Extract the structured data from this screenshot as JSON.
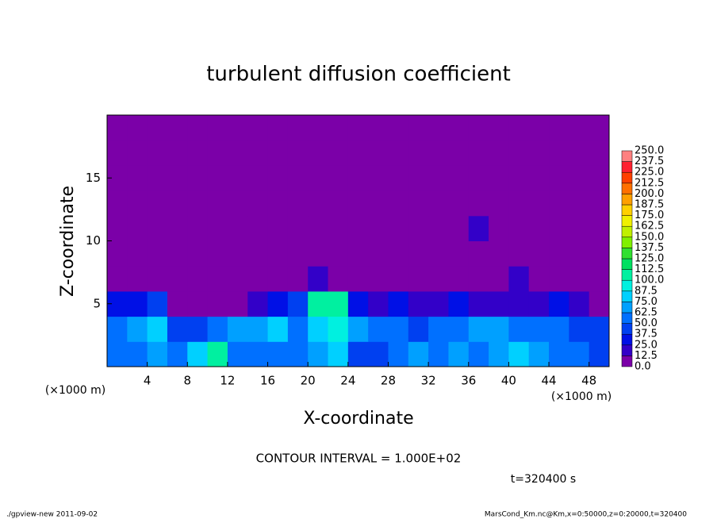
{
  "chart_data": {
    "type": "heatmap",
    "title": "turbulent diffusion coefficient",
    "x_label": "X-coordinate",
    "y_label": "Z-coordinate",
    "x_unit": "(×1000 m)",
    "y_unit": "(×1000 m)",
    "contour_note": "CONTOUR INTERVAL = 1.000E+02",
    "time_note": "t=320400 s",
    "footer_left": "./gpview-new  2011-09-02",
    "footer_right": "MarsCond_Km.nc@Km,x=0:50000,z=0:20000,t=320400",
    "xlim": [
      0,
      50
    ],
    "ylim": [
      0,
      20
    ],
    "xticks": [
      4,
      8,
      12,
      16,
      20,
      24,
      28,
      32,
      36,
      40,
      44,
      48
    ],
    "yticks": [
      5,
      10,
      15
    ],
    "xbins": [
      0,
      2,
      4,
      6,
      8,
      10,
      12,
      14,
      16,
      18,
      20,
      22,
      24,
      26,
      28,
      30,
      32,
      34,
      36,
      38,
      40,
      42,
      44,
      46,
      48,
      50
    ],
    "ybins": [
      0,
      2,
      4,
      6,
      8,
      10,
      12,
      14,
      16,
      18,
      20
    ],
    "values": [
      [
        50,
        60,
        70,
        55,
        80,
        100,
        60,
        50,
        55,
        60,
        70,
        75,
        40,
        45,
        60,
        70,
        55,
        65,
        60,
        70,
        75,
        65,
        55,
        50,
        45
      ],
      [
        55,
        70,
        80,
        45,
        40,
        50,
        65,
        70,
        75,
        60,
        85,
        90,
        65,
        60,
        50,
        45,
        55,
        60,
        70,
        65,
        60,
        55,
        50,
        45,
        40
      ],
      [
        30,
        35,
        40,
        5,
        5,
        5,
        10,
        20,
        30,
        40,
        100,
        110,
        30,
        20,
        25,
        15,
        20,
        25,
        15,
        20,
        15,
        20,
        25,
        20,
        10
      ],
      [
        3,
        3,
        3,
        3,
        3,
        3,
        3,
        3,
        3,
        10,
        20,
        5,
        3,
        3,
        3,
        3,
        5,
        8,
        10,
        12,
        15,
        8,
        3,
        3,
        3
      ],
      [
        3,
        3,
        3,
        3,
        3,
        12,
        3,
        3,
        3,
        3,
        3,
        3,
        3,
        3,
        3,
        3,
        3,
        3,
        3,
        3,
        3,
        3,
        3,
        3,
        3
      ],
      [
        3,
        3,
        3,
        3,
        3,
        3,
        3,
        3,
        3,
        3,
        3,
        3,
        3,
        3,
        3,
        3,
        3,
        10,
        15,
        5,
        3,
        3,
        3,
        3,
        3
      ],
      [
        3,
        3,
        3,
        3,
        3,
        3,
        3,
        3,
        3,
        3,
        3,
        3,
        3,
        3,
        3,
        3,
        3,
        8,
        5,
        5,
        3,
        3,
        3,
        3,
        3
      ],
      [
        3,
        3,
        3,
        3,
        3,
        3,
        3,
        3,
        3,
        3,
        3,
        3,
        3,
        3,
        3,
        3,
        3,
        3,
        3,
        3,
        3,
        3,
        3,
        3,
        3
      ],
      [
        3,
        3,
        3,
        3,
        3,
        3,
        3,
        10,
        3,
        3,
        3,
        3,
        3,
        3,
        3,
        3,
        3,
        3,
        3,
        3,
        3,
        3,
        3,
        3,
        3
      ],
      [
        3,
        3,
        3,
        3,
        3,
        3,
        3,
        3,
        3,
        3,
        3,
        3,
        3,
        3,
        3,
        3,
        3,
        3,
        3,
        3,
        3,
        3,
        3,
        3,
        3
      ]
    ],
    "levels": [
      {
        "value": 0,
        "label": "0.0"
      },
      {
        "value": 12.5,
        "label": "12.5"
      },
      {
        "value": 25,
        "label": "25.0"
      },
      {
        "value": 37.5,
        "label": "37.5"
      },
      {
        "value": 50,
        "label": "50.0"
      },
      {
        "value": 62.5,
        "label": "62.5"
      },
      {
        "value": 75,
        "label": "75.0"
      },
      {
        "value": 87.5,
        "label": "87.5"
      },
      {
        "value": 100,
        "label": "100.0"
      },
      {
        "value": 112.5,
        "label": "112.5"
      },
      {
        "value": 125,
        "label": "125.0"
      },
      {
        "value": 137.5,
        "label": "137.5"
      },
      {
        "value": 150,
        "label": "150.0"
      },
      {
        "value": 162.5,
        "label": "162.5"
      },
      {
        "value": 175,
        "label": "175.0"
      },
      {
        "value": 187.5,
        "label": "187.5"
      },
      {
        "value": 200,
        "label": "200.0"
      },
      {
        "value": 212.5,
        "label": "212.5"
      },
      {
        "value": 225,
        "label": "225.0"
      },
      {
        "value": 237.5,
        "label": "237.5"
      },
      {
        "value": 250,
        "label": "250.0"
      }
    ],
    "colors": [
      "#7b00a8",
      "#3300c8",
      "#0010e6",
      "#0040f0",
      "#0070ff",
      "#00a0ff",
      "#00d0ff",
      "#00f0e0",
      "#00f0a0",
      "#00e060",
      "#30e030",
      "#80f000",
      "#c0f000",
      "#f0f000",
      "#ffd000",
      "#ffa000",
      "#ff7000",
      "#ff4000",
      "#ff2030",
      "#ff8080"
    ]
  }
}
